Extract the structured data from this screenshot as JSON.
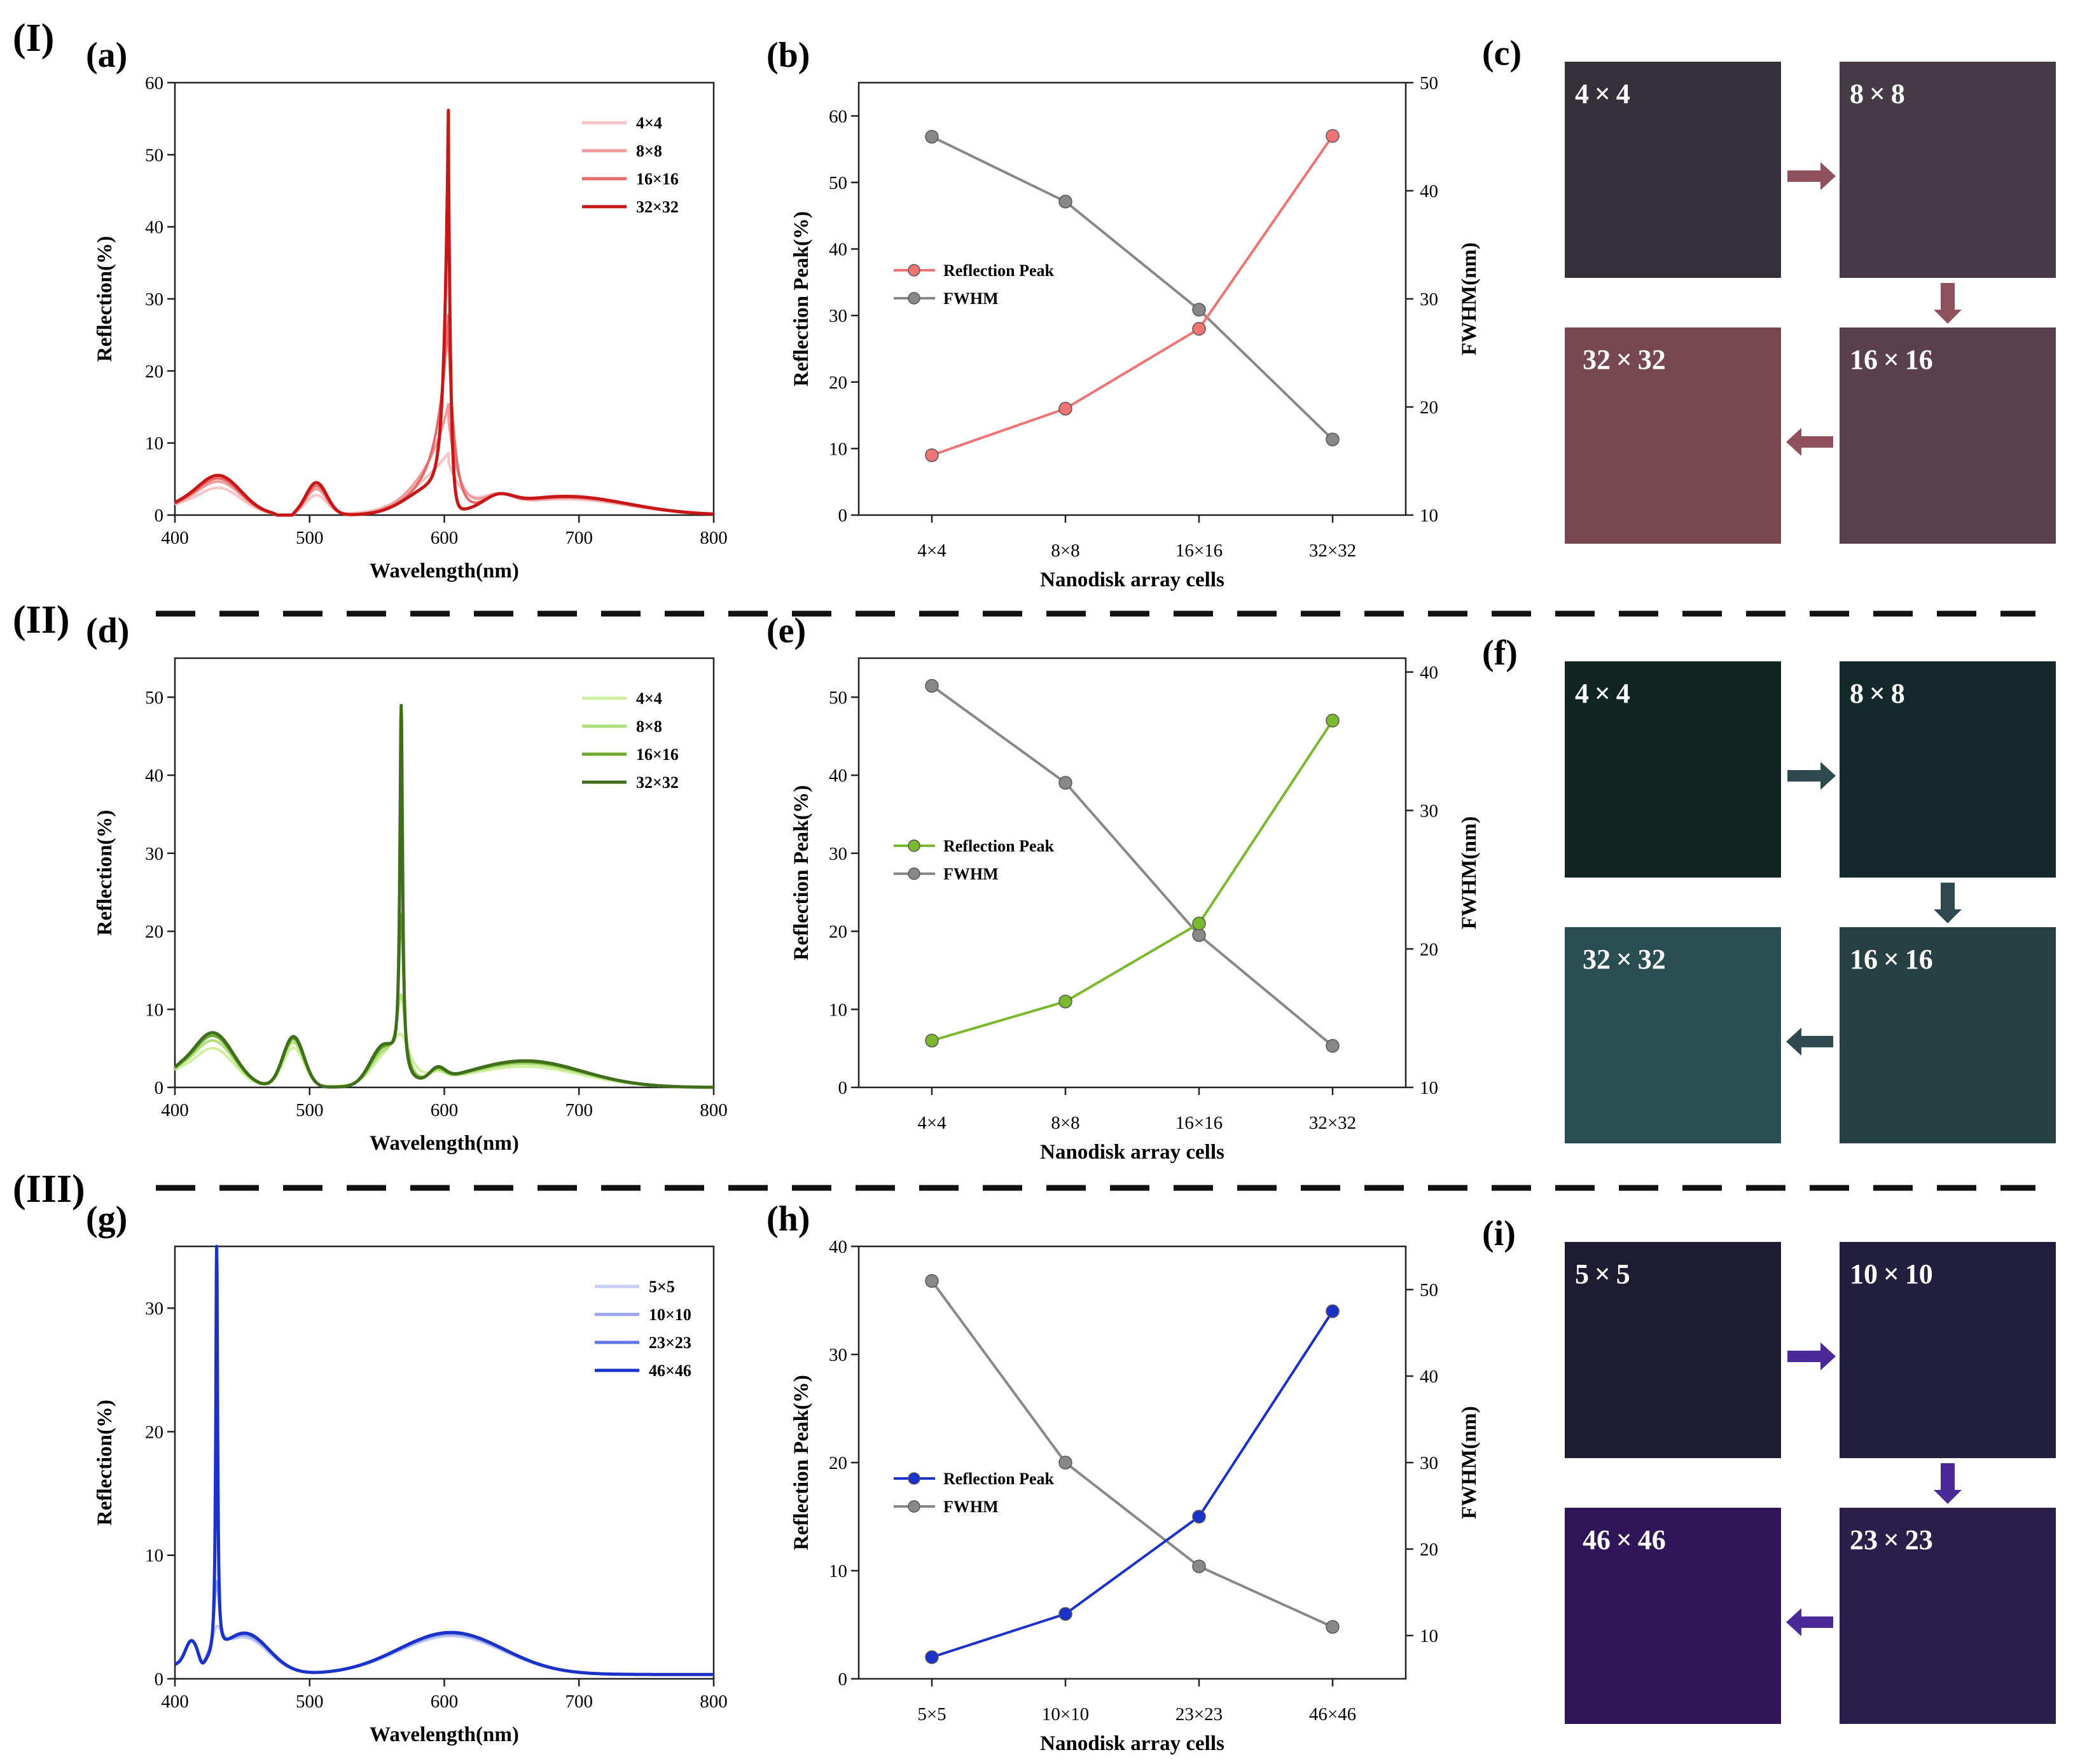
{
  "sections": [
    "(I)",
    "(II)",
    "(III)"
  ],
  "rows": [
    {
      "spectrum": {
        "panel": "(a)",
        "xlabel": "Wavelength(nm)",
        "ylabel": "Reflection(%)",
        "xlim": [
          400,
          800
        ],
        "ylim": [
          0,
          60
        ],
        "xticks": [
          400,
          500,
          600,
          700,
          800
        ],
        "yticks": [
          0,
          10,
          20,
          30,
          40,
          50,
          60
        ],
        "series": [
          {
            "name": "4×4",
            "color": "#f7c3c3"
          },
          {
            "name": "8×8",
            "color": "#f09a9a"
          },
          {
            "name": "16×16",
            "color": "#e66a6a"
          },
          {
            "name": "32×32",
            "color": "#c81717"
          }
        ]
      },
      "trend": {
        "panel": "(b)",
        "xlabel": "Nanodisk array cells",
        "ylabel_left": "Reflection Peak(%)",
        "ylabel_right": "FWHM(nm)",
        "categories": [
          "4×4",
          "8×8",
          "16×16",
          "32×32"
        ],
        "left_ylim": [
          0,
          65
        ],
        "left_yticks": [
          0,
          10,
          20,
          30,
          40,
          50,
          60
        ],
        "right_ylim": [
          10,
          50
        ],
        "right_yticks": [
          10,
          20,
          30,
          40,
          50
        ],
        "peak": {
          "name": "Reflection Peak",
          "color": "#f07474",
          "values": [
            9,
            16,
            28,
            57
          ]
        },
        "fwhm": {
          "name": "FWHM",
          "color": "#888888",
          "values": [
            45,
            39,
            29,
            17
          ]
        }
      },
      "colors": {
        "panel": "(c)",
        "arrow": "#8f525c",
        "squares": [
          {
            "label": "4×4",
            "color": "#35303a"
          },
          {
            "label": "8×8",
            "color": "#463a47"
          },
          {
            "label": "16×16",
            "color": "#5a3f4d"
          },
          {
            "label": "32×32",
            "color": "#774850"
          }
        ]
      }
    },
    {
      "spectrum": {
        "panel": "(d)",
        "xlabel": "Wavelength(nm)",
        "ylabel": "Reflection(%)",
        "xlim": [
          400,
          800
        ],
        "ylim": [
          0,
          55
        ],
        "xticks": [
          400,
          500,
          600,
          700,
          800
        ],
        "yticks": [
          0,
          10,
          20,
          30,
          40,
          50
        ],
        "series": [
          {
            "name": "4×4",
            "color": "#d0f0a0"
          },
          {
            "name": "8×8",
            "color": "#aee07a"
          },
          {
            "name": "16×16",
            "color": "#6ea82e"
          },
          {
            "name": "32×32",
            "color": "#3f6e1c"
          }
        ]
      },
      "trend": {
        "panel": "(e)",
        "xlabel": "Nanodisk array cells",
        "ylabel_left": "Reflection Peak(%)",
        "ylabel_right": "FWHM(nm)",
        "categories": [
          "4×4",
          "8×8",
          "16×16",
          "32×32"
        ],
        "left_ylim": [
          0,
          55
        ],
        "left_yticks": [
          0,
          10,
          20,
          30,
          40,
          50
        ],
        "right_ylim": [
          10,
          41
        ],
        "right_yticks": [
          10,
          20,
          30,
          40
        ],
        "peak": {
          "name": "Reflection Peak",
          "color": "#7ab82e",
          "values": [
            6,
            11,
            21,
            47
          ]
        },
        "fwhm": {
          "name": "FWHM",
          "color": "#888888",
          "values": [
            39,
            32,
            21,
            13
          ]
        }
      },
      "colors": {
        "panel": "(f)",
        "arrow": "#2f4a4e",
        "squares": [
          {
            "label": "4×4",
            "color": "#122422"
          },
          {
            "label": "8×8",
            "color": "#14292c"
          },
          {
            "label": "16×16",
            "color": "#264043"
          },
          {
            "label": "32×32",
            "color": "#2a4d52"
          }
        ]
      }
    },
    {
      "spectrum": {
        "panel": "(g)",
        "xlabel": "Wavelength(nm)",
        "ylabel": "Reflection(%)",
        "xlim": [
          400,
          800
        ],
        "ylim": [
          0,
          35
        ],
        "xticks": [
          400,
          500,
          600,
          700,
          800
        ],
        "yticks": [
          0,
          10,
          20,
          30
        ],
        "series": [
          {
            "name": "5×5",
            "color": "#c5cdf6"
          },
          {
            "name": "10×10",
            "color": "#97a5ee"
          },
          {
            "name": "23×23",
            "color": "#5f78e4"
          },
          {
            "name": "46×46",
            "color": "#1a32c8"
          }
        ]
      },
      "trend": {
        "panel": "(h)",
        "xlabel": "Nanodisk array cells",
        "ylabel_left": "Reflection Peak(%)",
        "ylabel_right": "FWHM(nm)",
        "categories": [
          "5×5",
          "10×10",
          "23×23",
          "46×46"
        ],
        "left_ylim": [
          0,
          40
        ],
        "left_yticks": [
          0,
          10,
          20,
          30,
          40
        ],
        "right_ylim": [
          5,
          55
        ],
        "right_yticks": [
          10,
          20,
          30,
          40,
          50
        ],
        "peak": {
          "name": "Reflection Peak",
          "color": "#1a32c8",
          "values": [
            2,
            6,
            15,
            34
          ]
        },
        "fwhm": {
          "name": "FWHM",
          "color": "#888888",
          "values": [
            51,
            30,
            18,
            11
          ]
        }
      },
      "colors": {
        "panel": "(i)",
        "arrow": "#4a2a96",
        "squares": [
          {
            "label": "5×5",
            "color": "#1e1c30"
          },
          {
            "label": "10×10",
            "color": "#221e3e"
          },
          {
            "label": "23×23",
            "color": "#2a1f4a"
          },
          {
            "label": "46×46",
            "color": "#2e1658"
          }
        ]
      }
    }
  ],
  "chart_data": [
    {
      "type": "line",
      "panel": "(a)",
      "xlabel": "Wavelength(nm)",
      "ylabel": "Reflection(%)",
      "xlim": [
        400,
        800
      ],
      "ylim": [
        0,
        60
      ],
      "series": [
        {
          "name": "4×4",
          "peak_x": 596,
          "peak_y": 10
        },
        {
          "name": "8×8",
          "peak_x": 598,
          "peak_y": 16
        },
        {
          "name": "16×16",
          "peak_x": 601,
          "peak_y": 28
        },
        {
          "name": "32×32",
          "peak_x": 602,
          "peak_y": 56
        }
      ]
    },
    {
      "type": "line",
      "panel": "(b)",
      "categories": [
        "4×4",
        "8×8",
        "16×16",
        "32×32"
      ],
      "xlabel": "Nanodisk array cells",
      "series": [
        {
          "name": "Reflection Peak",
          "axis": "left",
          "values": [
            9,
            16,
            28,
            57
          ]
        },
        {
          "name": "FWHM",
          "axis": "right",
          "values": [
            45,
            39,
            29,
            17
          ]
        }
      ]
    },
    {
      "type": "line",
      "panel": "(d)",
      "xlabel": "Wavelength(nm)",
      "ylabel": "Reflection(%)",
      "xlim": [
        400,
        800
      ],
      "ylim": [
        0,
        55
      ],
      "series": [
        {
          "name": "4×4",
          "peak_x": 562,
          "peak_y": 6.5
        },
        {
          "name": "8×8",
          "peak_x": 566,
          "peak_y": 11
        },
        {
          "name": "16×16",
          "peak_x": 568,
          "peak_y": 21
        },
        {
          "name": "32×32",
          "peak_x": 568,
          "peak_y": 47.5
        }
      ]
    },
    {
      "type": "line",
      "panel": "(e)",
      "categories": [
        "4×4",
        "8×8",
        "16×16",
        "32×32"
      ],
      "xlabel": "Nanodisk array cells",
      "series": [
        {
          "name": "Reflection Peak",
          "axis": "left",
          "values": [
            6,
            11,
            21,
            47
          ]
        },
        {
          "name": "FWHM",
          "axis": "right",
          "values": [
            39,
            32,
            21,
            13
          ]
        }
      ]
    },
    {
      "type": "line",
      "panel": "(g)",
      "xlabel": "Wavelength(nm)",
      "ylabel": "Reflection(%)",
      "xlim": [
        400,
        800
      ],
      "ylim": [
        0,
        35
      ],
      "series": [
        {
          "name": "5×5",
          "peak_x": 431,
          "peak_y": 2.5
        },
        {
          "name": "10×10",
          "peak_x": 431,
          "peak_y": 6
        },
        {
          "name": "23×23",
          "peak_x": 431,
          "peak_y": 15.5
        },
        {
          "name": "46×46",
          "peak_x": 431,
          "peak_y": 34
        }
      ]
    },
    {
      "type": "line",
      "panel": "(h)",
      "categories": [
        "5×5",
        "10×10",
        "23×23",
        "46×46"
      ],
      "xlabel": "Nanodisk array cells",
      "series": [
        {
          "name": "Reflection Peak",
          "axis": "left",
          "values": [
            2,
            6,
            15,
            34
          ]
        },
        {
          "name": "FWHM",
          "axis": "right",
          "values": [
            51,
            30,
            18,
            11
          ]
        }
      ]
    }
  ]
}
